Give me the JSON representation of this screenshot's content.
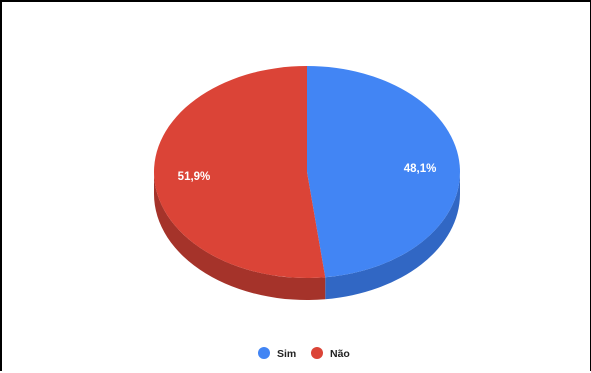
{
  "chart_data": {
    "type": "pie",
    "categories": [
      "Sim",
      "Não"
    ],
    "values": [
      48.1,
      51.9
    ],
    "labels": [
      "48,1%",
      "51,9%"
    ],
    "colors": [
      "#4285f4",
      "#db4437"
    ],
    "side_colors": [
      "#3167c4",
      "#a5332a"
    ],
    "style": "3d",
    "legend_position": "bottom"
  }
}
